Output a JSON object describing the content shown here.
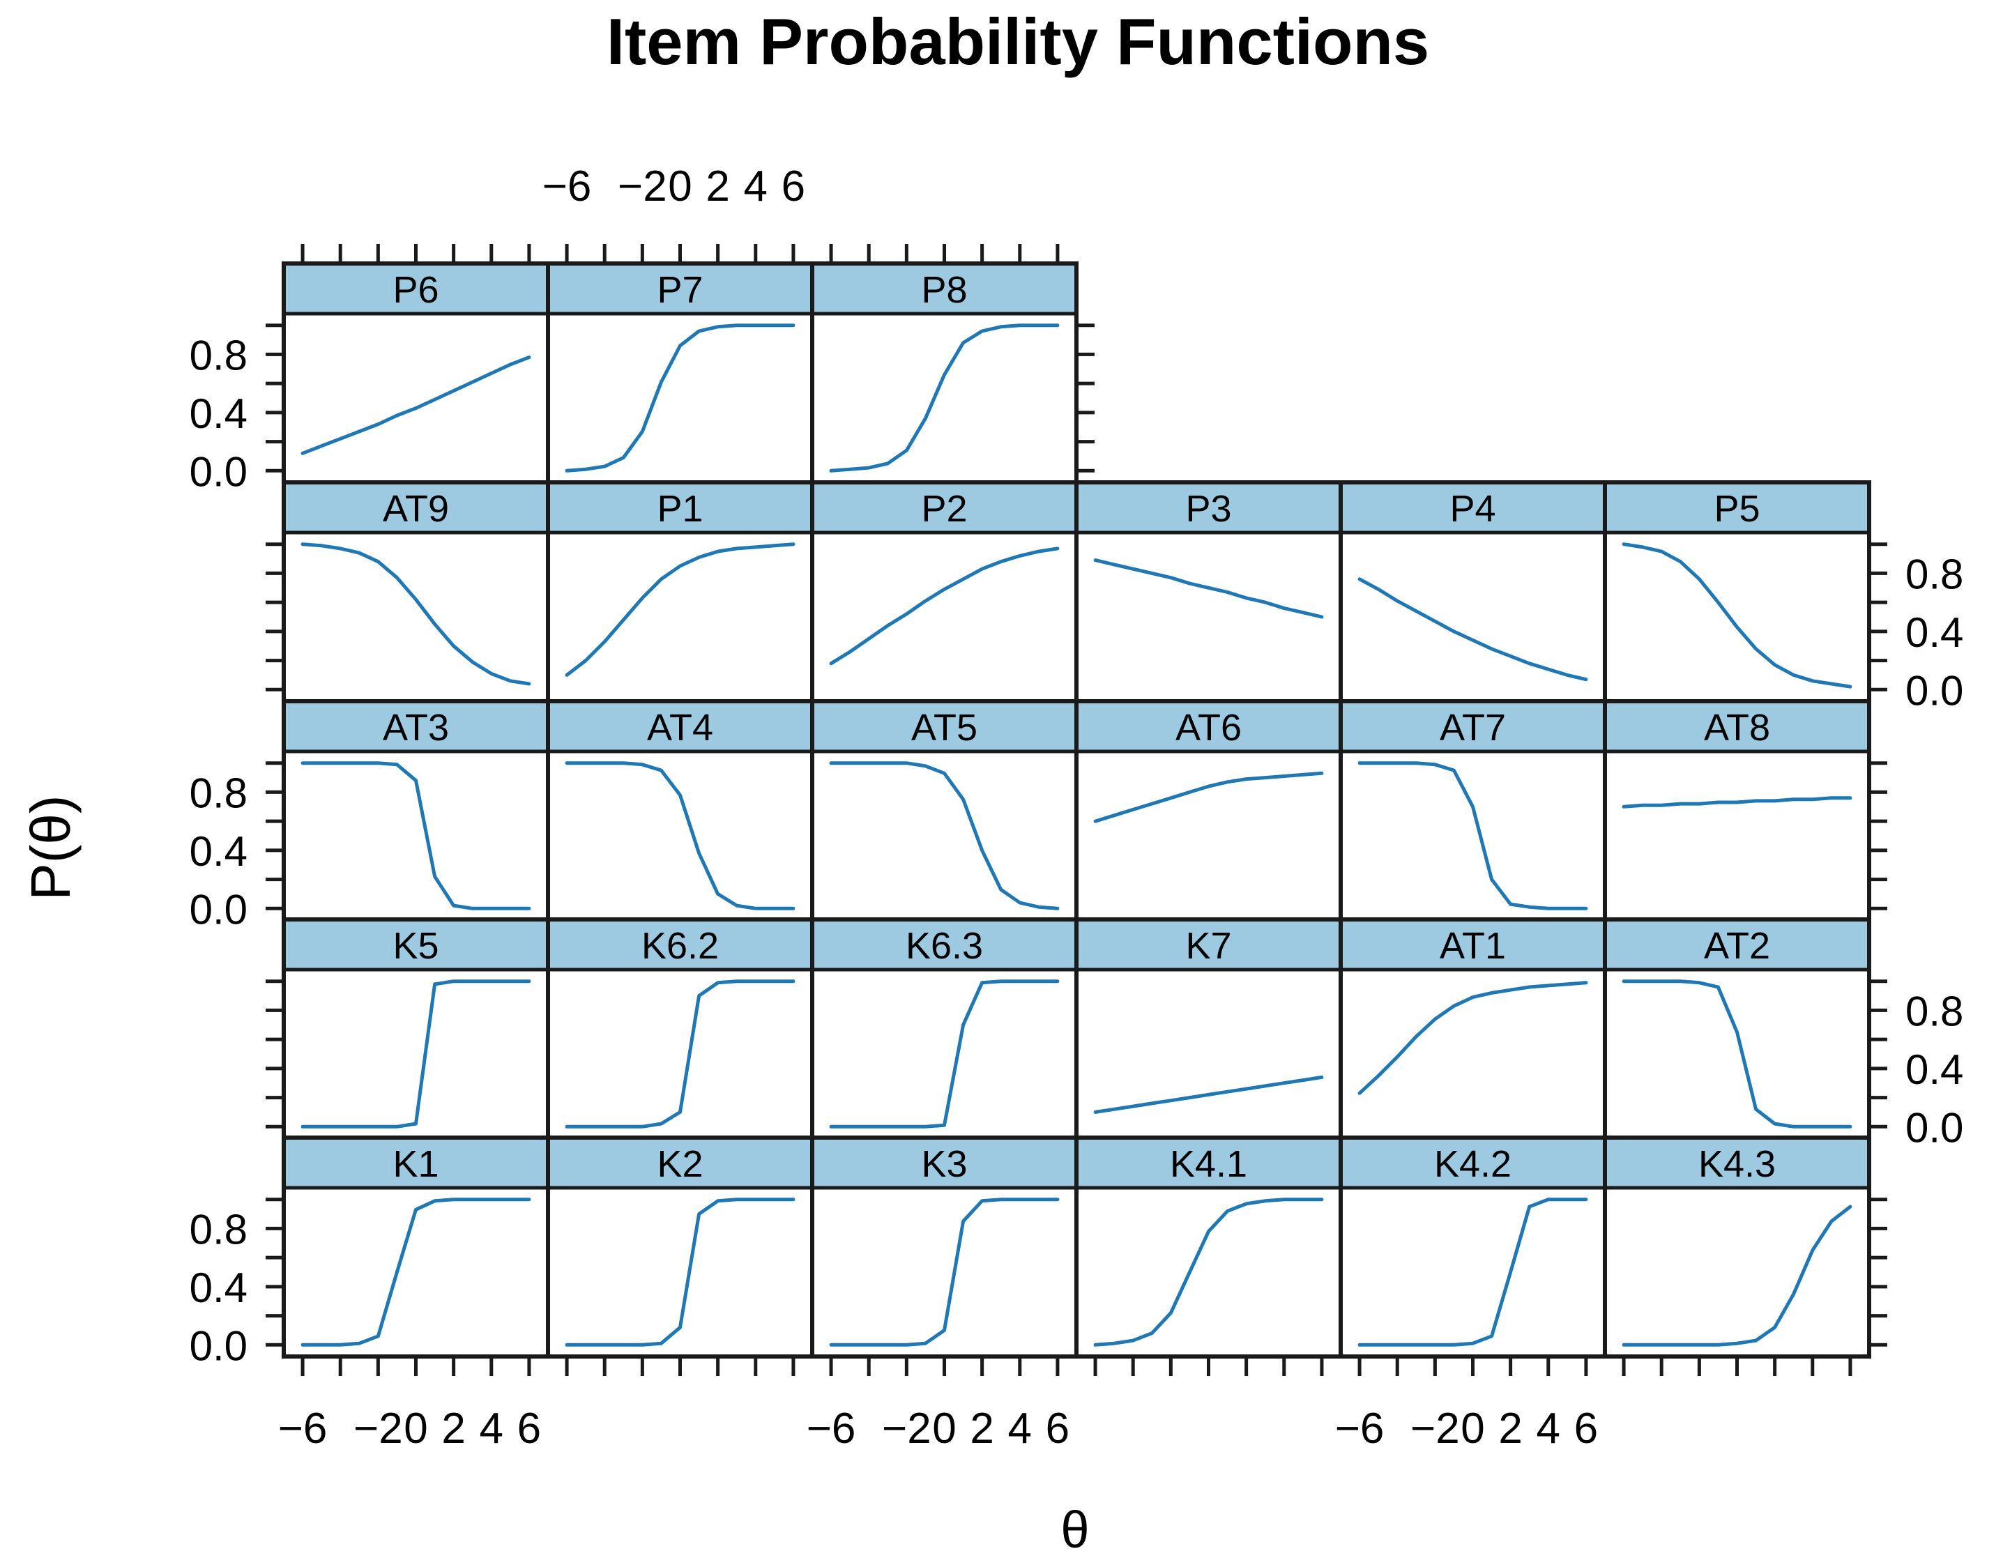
{
  "chart_data": {
    "type": "line",
    "title": "Item Probability Functions",
    "xlabel": "θ",
    "ylabel": "P(θ)",
    "xlim": [
      -7,
      7
    ],
    "ylim": [
      -0.08,
      1.08
    ],
    "x_ticks": [
      -6,
      -4,
      -2,
      0,
      2,
      4,
      6
    ],
    "x_tick_labels": [
      "−6",
      "−2",
      "0",
      "2",
      "4",
      "6"
    ],
    "x_tick_label_values": [
      -6,
      -2,
      0,
      2,
      4,
      6
    ],
    "y_ticks": [
      0,
      0.2,
      0.4,
      0.6,
      0.8,
      1.0
    ],
    "y_tick_labels": [
      "0.0",
      "0.4",
      "0.8"
    ],
    "y_tick_label_values": [
      0,
      0.4,
      0.8
    ],
    "grid": false,
    "legend": "none",
    "line_color": "#1f77b4",
    "strip_color": "#9ecae1",
    "x": [
      -6,
      -5,
      -4,
      -3,
      -2,
      -1,
      0,
      1,
      2,
      3,
      4,
      5,
      6
    ],
    "series": [
      {
        "name": "P6",
        "row": 0,
        "col": 0,
        "values": [
          0.12,
          0.17,
          0.22,
          0.27,
          0.32,
          0.38,
          0.43,
          0.49,
          0.55,
          0.61,
          0.67,
          0.73,
          0.78
        ]
      },
      {
        "name": "P7",
        "row": 0,
        "col": 1,
        "values": [
          0.0,
          0.01,
          0.03,
          0.09,
          0.27,
          0.61,
          0.86,
          0.96,
          0.99,
          1.0,
          1.0,
          1.0,
          1.0
        ]
      },
      {
        "name": "P8",
        "row": 0,
        "col": 2,
        "values": [
          0.0,
          0.01,
          0.02,
          0.05,
          0.14,
          0.36,
          0.66,
          0.88,
          0.96,
          0.99,
          1.0,
          1.0,
          1.0
        ]
      },
      {
        "name": "AT9",
        "row": 1,
        "col": 0,
        "values": [
          1.0,
          0.99,
          0.97,
          0.94,
          0.88,
          0.77,
          0.62,
          0.45,
          0.3,
          0.19,
          0.11,
          0.06,
          0.04
        ]
      },
      {
        "name": "P1",
        "row": 1,
        "col": 1,
        "values": [
          0.1,
          0.2,
          0.33,
          0.48,
          0.63,
          0.76,
          0.85,
          0.91,
          0.95,
          0.97,
          0.98,
          0.99,
          1.0
        ]
      },
      {
        "name": "P2",
        "row": 1,
        "col": 2,
        "values": [
          0.18,
          0.26,
          0.35,
          0.44,
          0.52,
          0.61,
          0.69,
          0.76,
          0.83,
          0.88,
          0.92,
          0.95,
          0.97
        ]
      },
      {
        "name": "P3",
        "row": 1,
        "col": 3,
        "values": [
          0.89,
          0.86,
          0.83,
          0.8,
          0.77,
          0.73,
          0.7,
          0.67,
          0.63,
          0.6,
          0.56,
          0.53,
          0.5
        ]
      },
      {
        "name": "P4",
        "row": 1,
        "col": 4,
        "values": [
          0.76,
          0.69,
          0.61,
          0.54,
          0.47,
          0.4,
          0.34,
          0.28,
          0.23,
          0.18,
          0.14,
          0.1,
          0.07
        ]
      },
      {
        "name": "P5",
        "row": 1,
        "col": 5,
        "values": [
          1.0,
          0.98,
          0.95,
          0.88,
          0.76,
          0.6,
          0.43,
          0.28,
          0.17,
          0.1,
          0.06,
          0.04,
          0.02
        ]
      },
      {
        "name": "AT3",
        "row": 2,
        "col": 0,
        "values": [
          1.0,
          1.0,
          1.0,
          1.0,
          1.0,
          0.99,
          0.88,
          0.22,
          0.02,
          0.0,
          0.0,
          0.0,
          0.0
        ]
      },
      {
        "name": "AT4",
        "row": 2,
        "col": 1,
        "values": [
          1.0,
          1.0,
          1.0,
          1.0,
          0.99,
          0.95,
          0.78,
          0.38,
          0.1,
          0.02,
          0.0,
          0.0,
          0.0
        ]
      },
      {
        "name": "AT5",
        "row": 2,
        "col": 2,
        "values": [
          1.0,
          1.0,
          1.0,
          1.0,
          1.0,
          0.98,
          0.93,
          0.75,
          0.4,
          0.13,
          0.04,
          0.01,
          0.0
        ]
      },
      {
        "name": "AT6",
        "row": 2,
        "col": 3,
        "values": [
          0.6,
          0.64,
          0.68,
          0.72,
          0.76,
          0.8,
          0.84,
          0.87,
          0.89,
          0.9,
          0.91,
          0.92,
          0.93
        ]
      },
      {
        "name": "AT7",
        "row": 2,
        "col": 4,
        "values": [
          1.0,
          1.0,
          1.0,
          1.0,
          0.99,
          0.95,
          0.7,
          0.2,
          0.03,
          0.01,
          0.0,
          0.0,
          0.0
        ]
      },
      {
        "name": "AT8",
        "row": 2,
        "col": 5,
        "values": [
          0.7,
          0.71,
          0.71,
          0.72,
          0.72,
          0.73,
          0.73,
          0.74,
          0.74,
          0.75,
          0.75,
          0.76,
          0.76
        ]
      },
      {
        "name": "K5",
        "row": 3,
        "col": 0,
        "values": [
          0.0,
          0.0,
          0.0,
          0.0,
          0.0,
          0.0,
          0.02,
          0.98,
          1.0,
          1.0,
          1.0,
          1.0,
          1.0
        ]
      },
      {
        "name": "K6.2",
        "row": 3,
        "col": 1,
        "values": [
          0.0,
          0.0,
          0.0,
          0.0,
          0.0,
          0.02,
          0.1,
          0.9,
          0.99,
          1.0,
          1.0,
          1.0,
          1.0
        ]
      },
      {
        "name": "K6.3",
        "row": 3,
        "col": 2,
        "values": [
          0.0,
          0.0,
          0.0,
          0.0,
          0.0,
          0.0,
          0.01,
          0.7,
          0.99,
          1.0,
          1.0,
          1.0,
          1.0
        ]
      },
      {
        "name": "K7",
        "row": 3,
        "col": 3,
        "values": [
          0.1,
          0.12,
          0.14,
          0.16,
          0.18,
          0.2,
          0.22,
          0.24,
          0.26,
          0.28,
          0.3,
          0.32,
          0.34
        ]
      },
      {
        "name": "AT1",
        "row": 3,
        "col": 4,
        "values": [
          0.23,
          0.35,
          0.48,
          0.62,
          0.74,
          0.83,
          0.89,
          0.92,
          0.94,
          0.96,
          0.97,
          0.98,
          0.99
        ]
      },
      {
        "name": "AT2",
        "row": 3,
        "col": 5,
        "values": [
          1.0,
          1.0,
          1.0,
          1.0,
          0.99,
          0.96,
          0.65,
          0.12,
          0.02,
          0.0,
          0.0,
          0.0,
          0.0
        ]
      },
      {
        "name": "K1",
        "row": 4,
        "col": 0,
        "values": [
          0.0,
          0.0,
          0.0,
          0.01,
          0.06,
          0.5,
          0.93,
          0.99,
          1.0,
          1.0,
          1.0,
          1.0,
          1.0
        ]
      },
      {
        "name": "K2",
        "row": 4,
        "col": 1,
        "values": [
          0.0,
          0.0,
          0.0,
          0.0,
          0.0,
          0.01,
          0.12,
          0.9,
          0.99,
          1.0,
          1.0,
          1.0,
          1.0
        ]
      },
      {
        "name": "K3",
        "row": 4,
        "col": 2,
        "values": [
          0.0,
          0.0,
          0.0,
          0.0,
          0.0,
          0.01,
          0.1,
          0.85,
          0.99,
          1.0,
          1.0,
          1.0,
          1.0
        ]
      },
      {
        "name": "K4.1",
        "row": 4,
        "col": 3,
        "values": [
          0.0,
          0.01,
          0.03,
          0.08,
          0.22,
          0.5,
          0.78,
          0.92,
          0.97,
          0.99,
          1.0,
          1.0,
          1.0
        ]
      },
      {
        "name": "K4.2",
        "row": 4,
        "col": 4,
        "values": [
          0.0,
          0.0,
          0.0,
          0.0,
          0.0,
          0.0,
          0.01,
          0.06,
          0.5,
          0.95,
          1.0,
          1.0,
          1.0
        ]
      },
      {
        "name": "K4.3",
        "row": 4,
        "col": 5,
        "values": [
          0.0,
          0.0,
          0.0,
          0.0,
          0.0,
          0.0,
          0.01,
          0.03,
          0.12,
          0.35,
          0.65,
          0.85,
          0.95
        ]
      }
    ]
  }
}
